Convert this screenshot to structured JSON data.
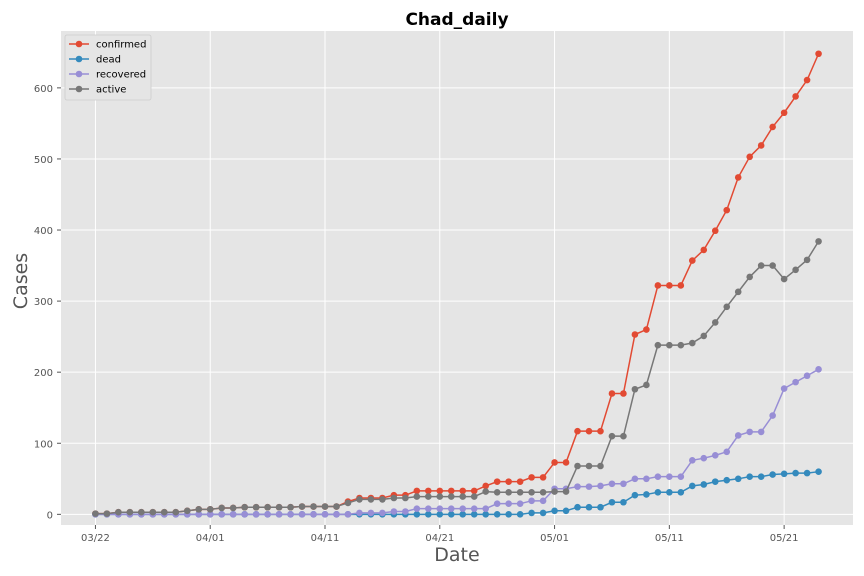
{
  "chart_data": {
    "type": "line",
    "title": "Chad_daily",
    "xlabel": "Date",
    "ylabel": "Cases",
    "x_start": "2020-03-22",
    "xlim": [
      "2020-03-19",
      "2020-05-27"
    ],
    "ylim": [
      -15,
      680
    ],
    "xticks": [
      {
        "label": "03/22",
        "date": "2020-03-22"
      },
      {
        "label": "04/01",
        "date": "2020-04-01"
      },
      {
        "label": "04/11",
        "date": "2020-04-11"
      },
      {
        "label": "04/21",
        "date": "2020-04-21"
      },
      {
        "label": "05/01",
        "date": "2020-05-01"
      },
      {
        "label": "05/11",
        "date": "2020-05-11"
      },
      {
        "label": "05/21",
        "date": "2020-05-21"
      }
    ],
    "yticks": [
      0,
      100,
      200,
      300,
      400,
      500,
      600
    ],
    "grid": true,
    "legend_position": "top-left",
    "series": [
      {
        "name": "confirmed",
        "color": "#E24A33",
        "values": [
          1,
          1,
          3,
          3,
          3,
          3,
          3,
          3,
          5,
          7,
          7,
          9,
          9,
          10,
          10,
          10,
          10,
          10,
          11,
          11,
          11,
          11,
          18,
          23,
          23,
          23,
          27,
          27,
          33,
          33,
          33,
          33,
          33,
          33,
          40,
          46,
          46,
          46,
          52,
          52,
          73,
          73,
          117,
          117,
          117,
          170,
          170,
          253,
          260,
          322,
          322,
          322,
          357,
          372,
          399,
          428,
          474,
          503,
          519,
          545,
          565,
          588,
          611,
          648
        ]
      },
      {
        "name": "dead",
        "color": "#348ABD",
        "values": [
          0,
          0,
          0,
          0,
          0,
          0,
          0,
          0,
          0,
          0,
          0,
          0,
          0,
          0,
          0,
          0,
          0,
          0,
          0,
          0,
          0,
          0,
          0,
          0,
          0,
          0,
          0,
          0,
          0,
          0,
          0,
          0,
          0,
          0,
          0,
          0,
          0,
          0,
          2,
          2,
          5,
          5,
          10,
          10,
          10,
          17,
          17,
          27,
          28,
          31,
          31,
          31,
          40,
          42,
          46,
          48,
          50,
          53,
          53,
          56,
          57,
          58,
          58,
          60
        ]
      },
      {
        "name": "recovered",
        "color": "#988ED5",
        "values": [
          0,
          0,
          0,
          0,
          0,
          0,
          0,
          0,
          0,
          0,
          0,
          0,
          0,
          0,
          0,
          0,
          0,
          0,
          0,
          0,
          0,
          0,
          0,
          2,
          2,
          2,
          4,
          4,
          8,
          8,
          8,
          8,
          8,
          8,
          8,
          15,
          15,
          15,
          19,
          19,
          36,
          36,
          39,
          39,
          40,
          43,
          43,
          50,
          50,
          53,
          53,
          53,
          76,
          79,
          83,
          88,
          111,
          116,
          116,
          139,
          177,
          186,
          195,
          204
        ]
      },
      {
        "name": "active",
        "color": "#777777",
        "values": [
          1,
          1,
          3,
          3,
          3,
          3,
          3,
          3,
          5,
          7,
          7,
          9,
          9,
          10,
          10,
          10,
          10,
          10,
          11,
          11,
          11,
          11,
          16,
          21,
          21,
          21,
          23,
          23,
          25,
          25,
          25,
          25,
          25,
          25,
          32,
          31,
          31,
          31,
          31,
          31,
          32,
          32,
          68,
          68,
          68,
          110,
          110,
          176,
          182,
          238,
          238,
          238,
          241,
          251,
          270,
          292,
          313,
          334,
          350,
          350,
          331,
          344,
          358,
          384
        ]
      }
    ]
  }
}
